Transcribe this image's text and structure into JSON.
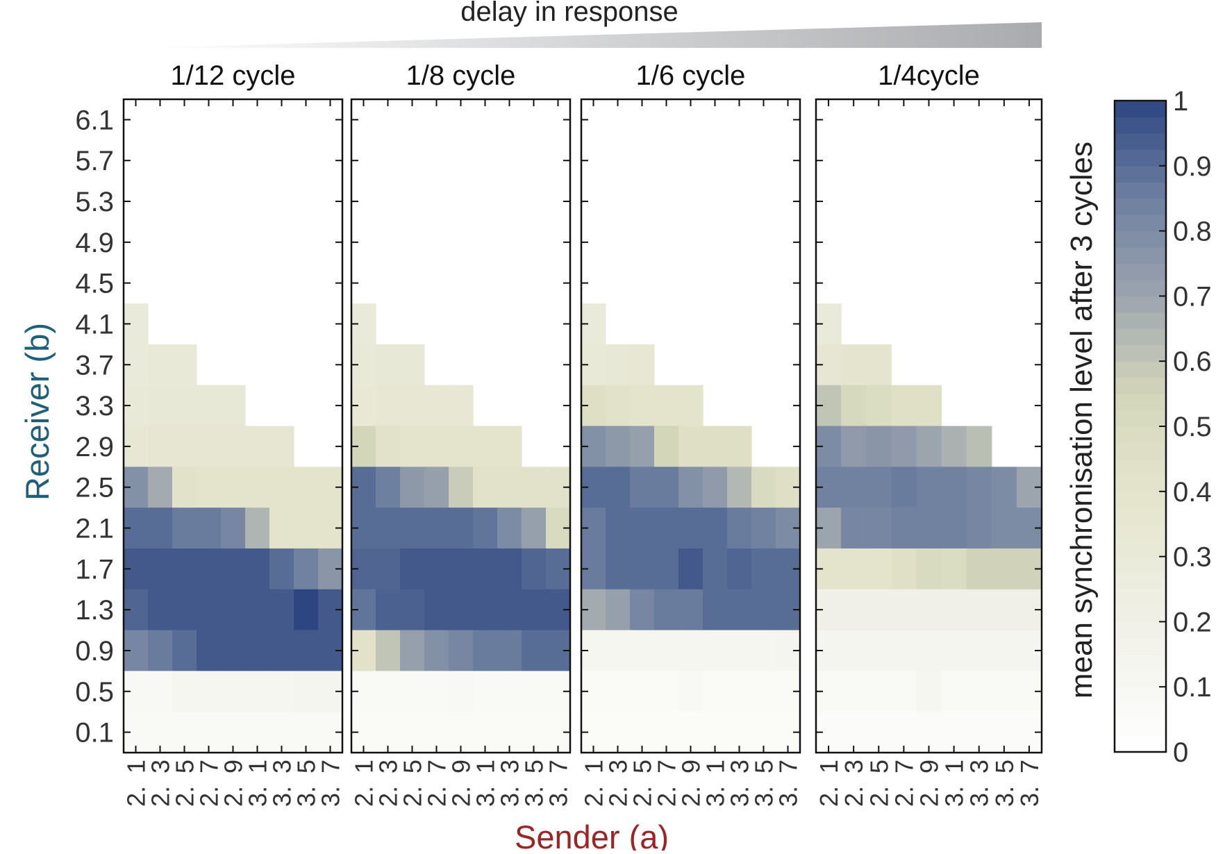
{
  "chart_data": {
    "type": "heatmap",
    "suptitle": "delay in response",
    "xlabel": "Sender (a)",
    "ylabel": "Receiver (b)",
    "x_categories": [
      "2.1",
      "2.3",
      "2.5",
      "2.7",
      "2.9",
      "3.1",
      "3.3",
      "3.5",
      "3.7"
    ],
    "x_tick_labels": [
      {
        "top": "1",
        "bottom": "2."
      },
      {
        "top": "3",
        "bottom": "2."
      },
      {
        "top": "5",
        "bottom": "2."
      },
      {
        "top": "7",
        "bottom": "2."
      },
      {
        "top": "9",
        "bottom": "2."
      },
      {
        "top": "1",
        "bottom": "3."
      },
      {
        "top": "3",
        "bottom": "3."
      },
      {
        "top": "5",
        "bottom": "3."
      },
      {
        "top": "7",
        "bottom": "3."
      }
    ],
    "y_categories": [
      "6.1",
      "5.7",
      "5.3",
      "4.9",
      "4.5",
      "4.1",
      "3.7",
      "3.3",
      "2.9",
      "2.5",
      "2.1",
      "1.7",
      "1.3",
      "0.9",
      "0.5",
      "0.1"
    ],
    "colorbar": {
      "label": "mean synchronisation level after 3 cycles",
      "range": [
        0,
        1
      ],
      "ticks": [
        "0",
        "0.1",
        "0.2",
        "0.3",
        "0.4",
        "0.5",
        "0.6",
        "0.7",
        "0.8",
        "0.9",
        "1"
      ]
    },
    "panels": [
      {
        "title": "1/12 cycle",
        "values": [
          [
            null,
            null,
            null,
            null,
            null,
            null,
            null,
            null,
            null
          ],
          [
            null,
            null,
            null,
            null,
            null,
            null,
            null,
            null,
            null
          ],
          [
            null,
            null,
            null,
            null,
            null,
            null,
            null,
            null,
            null
          ],
          [
            null,
            null,
            null,
            null,
            null,
            null,
            null,
            null,
            null
          ],
          [
            null,
            null,
            null,
            null,
            null,
            null,
            null,
            null,
            null
          ],
          [
            0.3,
            null,
            null,
            null,
            null,
            null,
            null,
            null,
            null
          ],
          [
            0.3,
            0.32,
            0.32,
            null,
            null,
            null,
            null,
            null,
            null
          ],
          [
            0.32,
            0.33,
            0.33,
            0.33,
            0.33,
            null,
            null,
            null,
            null
          ],
          [
            0.35,
            0.36,
            0.36,
            0.36,
            0.36,
            0.36,
            0.36,
            null,
            null
          ],
          [
            0.78,
            0.68,
            0.42,
            0.4,
            0.4,
            0.4,
            0.4,
            0.4,
            0.4
          ],
          [
            0.9,
            0.9,
            0.86,
            0.86,
            0.82,
            0.65,
            0.4,
            0.4,
            0.4
          ],
          [
            0.95,
            0.95,
            0.95,
            0.95,
            0.95,
            0.95,
            0.9,
            0.84,
            0.76
          ],
          [
            0.92,
            0.95,
            0.95,
            0.95,
            0.95,
            0.95,
            0.95,
            1.0,
            0.95
          ],
          [
            0.82,
            0.86,
            0.9,
            0.95,
            0.95,
            0.95,
            0.95,
            0.95,
            0.95
          ],
          [
            0.1,
            0.1,
            0.12,
            0.12,
            0.12,
            0.12,
            0.12,
            0.14,
            0.14
          ],
          [
            0.08,
            0.08,
            0.08,
            0.08,
            0.08,
            0.08,
            0.08,
            0.08,
            0.08
          ]
        ]
      },
      {
        "title": "1/8 cycle",
        "values": [
          [
            null,
            null,
            null,
            null,
            null,
            null,
            null,
            null,
            null
          ],
          [
            null,
            null,
            null,
            null,
            null,
            null,
            null,
            null,
            null
          ],
          [
            null,
            null,
            null,
            null,
            null,
            null,
            null,
            null,
            null
          ],
          [
            null,
            null,
            null,
            null,
            null,
            null,
            null,
            null,
            null
          ],
          [
            null,
            null,
            null,
            null,
            null,
            null,
            null,
            null,
            null
          ],
          [
            0.3,
            null,
            null,
            null,
            null,
            null,
            null,
            null,
            null
          ],
          [
            0.32,
            0.33,
            0.33,
            null,
            null,
            null,
            null,
            null,
            null
          ],
          [
            0.34,
            0.35,
            0.35,
            0.35,
            0.35,
            null,
            null,
            null,
            null
          ],
          [
            0.55,
            0.42,
            0.4,
            0.4,
            0.4,
            0.4,
            0.4,
            null,
            null
          ],
          [
            0.9,
            0.85,
            0.75,
            0.72,
            0.58,
            0.42,
            0.42,
            0.42,
            0.42
          ],
          [
            0.9,
            0.9,
            0.9,
            0.9,
            0.9,
            0.88,
            0.8,
            0.72,
            0.5
          ],
          [
            0.92,
            0.92,
            0.95,
            0.95,
            0.95,
            0.95,
            0.95,
            0.92,
            0.9
          ],
          [
            0.88,
            0.93,
            0.93,
            0.95,
            0.95,
            0.95,
            0.95,
            0.95,
            0.95
          ],
          [
            0.42,
            0.6,
            0.72,
            0.78,
            0.82,
            0.86,
            0.86,
            0.9,
            0.9
          ],
          [
            0.08,
            0.08,
            0.08,
            0.08,
            0.1,
            0.08,
            0.08,
            0.08,
            0.08
          ],
          [
            0.07,
            0.07,
            0.07,
            0.07,
            0.07,
            0.07,
            0.07,
            0.07,
            0.07
          ]
        ]
      },
      {
        "title": "1/6 cycle",
        "values": [
          [
            null,
            null,
            null,
            null,
            null,
            null,
            null,
            null,
            null
          ],
          [
            null,
            null,
            null,
            null,
            null,
            null,
            null,
            null,
            null
          ],
          [
            null,
            null,
            null,
            null,
            null,
            null,
            null,
            null,
            null
          ],
          [
            null,
            null,
            null,
            null,
            null,
            null,
            null,
            null,
            null
          ],
          [
            null,
            null,
            null,
            null,
            null,
            null,
            null,
            null,
            null
          ],
          [
            0.3,
            null,
            null,
            null,
            null,
            null,
            null,
            null,
            null
          ],
          [
            0.32,
            0.33,
            0.35,
            null,
            null,
            null,
            null,
            null,
            null
          ],
          [
            0.45,
            0.42,
            0.4,
            0.4,
            0.4,
            null,
            null,
            null,
            null
          ],
          [
            0.78,
            0.75,
            0.72,
            0.55,
            0.45,
            0.45,
            0.45,
            null,
            null
          ],
          [
            0.9,
            0.9,
            0.86,
            0.86,
            0.78,
            0.74,
            0.64,
            0.5,
            0.45
          ],
          [
            0.86,
            0.9,
            0.9,
            0.9,
            0.9,
            0.9,
            0.86,
            0.84,
            0.8
          ],
          [
            0.86,
            0.9,
            0.9,
            0.9,
            0.95,
            0.9,
            0.92,
            0.9,
            0.9
          ],
          [
            0.68,
            0.72,
            0.82,
            0.86,
            0.86,
            0.9,
            0.9,
            0.9,
            0.9
          ],
          [
            0.12,
            0.12,
            0.12,
            0.12,
            0.12,
            0.12,
            0.12,
            0.12,
            0.14
          ],
          [
            0.07,
            0.07,
            0.07,
            0.07,
            0.1,
            0.07,
            0.07,
            0.07,
            0.07
          ],
          [
            0.06,
            0.06,
            0.06,
            0.06,
            0.06,
            0.06,
            0.06,
            0.06,
            0.06
          ]
        ]
      },
      {
        "title": "1/4cycle",
        "values": [
          [
            null,
            null,
            null,
            null,
            null,
            null,
            null,
            null,
            null
          ],
          [
            null,
            null,
            null,
            null,
            null,
            null,
            null,
            null,
            null
          ],
          [
            null,
            null,
            null,
            null,
            null,
            null,
            null,
            null,
            null
          ],
          [
            null,
            null,
            null,
            null,
            null,
            null,
            null,
            null,
            null
          ],
          [
            null,
            null,
            null,
            null,
            null,
            null,
            null,
            null,
            null
          ],
          [
            0.3,
            null,
            null,
            null,
            null,
            null,
            null,
            null,
            null
          ],
          [
            0.36,
            0.38,
            0.38,
            null,
            null,
            null,
            null,
            null,
            null
          ],
          [
            0.6,
            0.52,
            0.48,
            0.44,
            0.44,
            null,
            null,
            null,
            null
          ],
          [
            0.8,
            0.74,
            0.76,
            0.74,
            0.7,
            0.66,
            0.62,
            null,
            null
          ],
          [
            0.84,
            0.84,
            0.84,
            0.86,
            0.84,
            0.84,
            0.82,
            0.8,
            0.7
          ],
          [
            0.7,
            0.82,
            0.82,
            0.84,
            0.84,
            0.84,
            0.82,
            0.8,
            0.8
          ],
          [
            0.4,
            0.4,
            0.4,
            0.44,
            0.5,
            0.48,
            0.56,
            0.56,
            0.56
          ],
          [
            0.2,
            0.2,
            0.2,
            0.2,
            0.2,
            0.2,
            0.2,
            0.2,
            0.2
          ],
          [
            0.14,
            0.14,
            0.14,
            0.14,
            0.14,
            0.14,
            0.14,
            0.14,
            0.14
          ],
          [
            0.08,
            0.08,
            0.08,
            0.08,
            0.12,
            0.08,
            0.08,
            0.08,
            0.08
          ],
          [
            0.05,
            0.05,
            0.05,
            0.05,
            0.05,
            0.05,
            0.05,
            0.05,
            0.05
          ]
        ]
      }
    ]
  }
}
